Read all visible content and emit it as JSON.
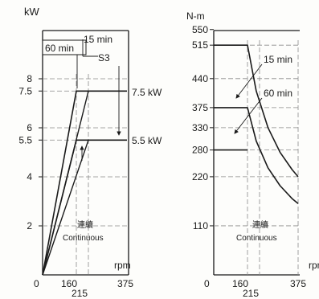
{
  "header_fragment": "",
  "colors": {
    "background": "#fdfdfb",
    "ink": "#1a1a1a",
    "grid": "#8a8a8a"
  },
  "chart_data": [
    {
      "type": "line",
      "title": "",
      "ylabel": "kW",
      "xlabel": "rpm",
      "xlim": [
        0,
        375
      ],
      "ylim": [
        0,
        9
      ],
      "x_ticks": [
        "0",
        "160",
        "215",
        "375"
      ],
      "y_ticks": [
        "2",
        "4",
        "5.5",
        "6",
        "7.5",
        "8"
      ],
      "grid": "dashed",
      "region_label_ja": "連續",
      "region_label_en": "Continuous",
      "series": [
        {
          "name": "15 min",
          "x": [
            0,
            160,
            375
          ],
          "y": [
            0,
            7.5,
            7.5
          ]
        },
        {
          "name": "60 min",
          "x": [
            0,
            215,
            375
          ],
          "y": [
            0,
            7.5,
            7.5
          ]
        },
        {
          "name": "",
          "x": [
            0,
            160,
            375
          ],
          "y": [
            0,
            5.5,
            5.5
          ]
        },
        {
          "name": "",
          "x": [
            0,
            215,
            375
          ],
          "y": [
            0,
            5.5,
            5.5
          ]
        }
      ],
      "annotations": [
        "60 min",
        "15 min",
        "S3",
        "7.5 kW",
        "5.5 kW"
      ]
    },
    {
      "type": "line",
      "title": "",
      "ylabel": "N-m",
      "xlabel": "rpm",
      "xlim": [
        0,
        375
      ],
      "ylim": [
        0,
        550
      ],
      "x_ticks": [
        "0",
        "160",
        "215",
        "375"
      ],
      "y_ticks": [
        "110",
        "220",
        "280",
        "330",
        "375",
        "440",
        "515",
        "550"
      ],
      "grid": "dashed",
      "region_label_ja": "連續",
      "region_label_en": "Continuous",
      "series": [
        {
          "name": "15 min",
          "x": [
            0,
            160,
            200,
            250,
            300,
            350,
            375
          ],
          "y": [
            515,
            515,
            412,
            330,
            275,
            236,
            220
          ]
        },
        {
          "name": "60 min",
          "x": [
            0,
            160,
            200,
            250,
            300,
            350,
            375
          ],
          "y": [
            375,
            375,
            300,
            240,
            200,
            171,
            160
          ]
        },
        {
          "name": "",
          "x": [
            0,
            160
          ],
          "y": [
            280,
            280
          ]
        }
      ],
      "annotations": [
        "15 min",
        "60 min"
      ]
    }
  ]
}
